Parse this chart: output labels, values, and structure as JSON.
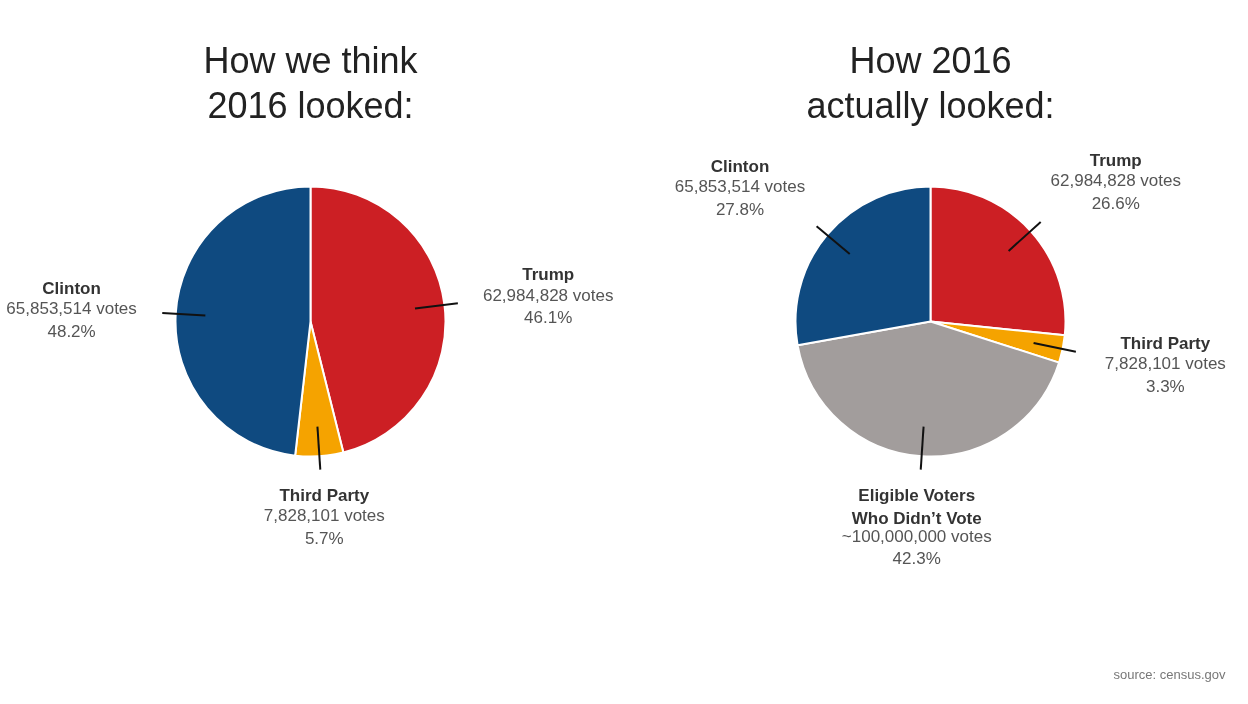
{
  "chart_data": [
    {
      "type": "pie",
      "title": "How we think\n2016 looked:",
      "categories": [
        "Trump",
        "Third Party",
        "Clinton"
      ],
      "values": [
        62984828,
        7828101,
        65853514
      ],
      "colors": [
        "#cc1f24",
        "#f5a300",
        "#0f4a80"
      ],
      "value_labels": [
        "62,984,828 votes\n46.1%",
        "7,828,101 votes\n5.7%",
        "65,853,514 votes\n48.2%"
      ]
    },
    {
      "type": "pie",
      "title": "How 2016\nactually looked:",
      "categories": [
        "Trump",
        "Third Party",
        "Eligible Voters\nWho Didn’t Vote",
        "Clinton"
      ],
      "values": [
        62984828,
        7828101,
        100000000,
        65853514
      ],
      "colors": [
        "#cc1f24",
        "#f5a300",
        "#a29d9c",
        "#0f4a80"
      ],
      "value_labels": [
        "62,984,828 votes\n26.6%",
        "7,828,101 votes\n3.3%",
        "~100,000,000 votes\n42.3%",
        "65,853,514 votes\n27.8%"
      ],
      "annotations": [
        "source: census.gov"
      ]
    }
  ]
}
